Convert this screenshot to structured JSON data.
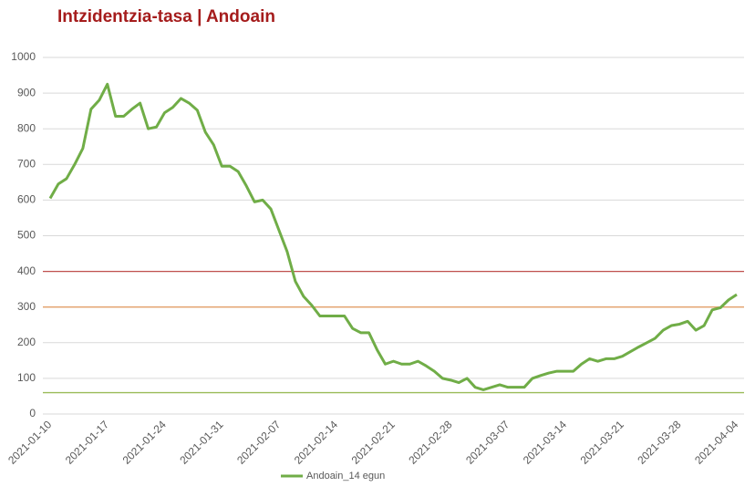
{
  "chart_data": {
    "type": "line",
    "title": "Intzidentzia-tasa | Andoain",
    "categories": [
      "2021-01-10",
      null,
      null,
      null,
      null,
      null,
      null,
      "2021-01-17",
      null,
      null,
      null,
      null,
      null,
      null,
      "2021-01-24",
      null,
      null,
      null,
      null,
      null,
      null,
      "2021-01-31",
      null,
      null,
      null,
      null,
      null,
      null,
      "2021-02-07",
      null,
      null,
      null,
      null,
      null,
      null,
      "2021-02-14",
      null,
      null,
      null,
      null,
      null,
      null,
      "2021-02-21",
      null,
      null,
      null,
      null,
      null,
      null,
      "2021-02-28",
      null,
      null,
      null,
      null,
      null,
      null,
      "2021-03-07",
      null,
      null,
      null,
      null,
      null,
      null,
      "2021-03-14",
      null,
      null,
      null,
      null,
      null,
      null,
      "2021-03-21",
      null,
      null,
      null,
      null,
      null,
      null,
      "2021-03-28",
      null,
      null,
      null,
      null,
      null,
      null,
      "2021-04-04"
    ],
    "series": [
      {
        "name": "Andoain_14 egun",
        "color": "#70ad47",
        "values": [
          605,
          645,
          660,
          700,
          745,
          855,
          880,
          925,
          835,
          835,
          855,
          872,
          800,
          805,
          845,
          860,
          885,
          872,
          852,
          790,
          755,
          695,
          695,
          680,
          640,
          595,
          600,
          575,
          515,
          455,
          372,
          330,
          305,
          275,
          275,
          275,
          275,
          240,
          228,
          228,
          180,
          140,
          148,
          140,
          140,
          148,
          135,
          120,
          100,
          95,
          88,
          100,
          75,
          68,
          75,
          82,
          75,
          75,
          75,
          100,
          108,
          115,
          120,
          120,
          120,
          140,
          155,
          148,
          155,
          155,
          162,
          175,
          188,
          200,
          212,
          235,
          248,
          252,
          260,
          235,
          248,
          292,
          298,
          320,
          335
        ]
      }
    ],
    "reference_lines": [
      {
        "value": 400,
        "color": "#c0504d"
      },
      {
        "value": 300,
        "color": "#e3a06a"
      },
      {
        "value": 60,
        "color": "#9bbb59"
      }
    ],
    "ylim": [
      0,
      1000
    ],
    "yticks": [
      0,
      100,
      200,
      300,
      400,
      500,
      600,
      700,
      800,
      900,
      1000
    ],
    "grid": true,
    "legend": "bottom"
  }
}
